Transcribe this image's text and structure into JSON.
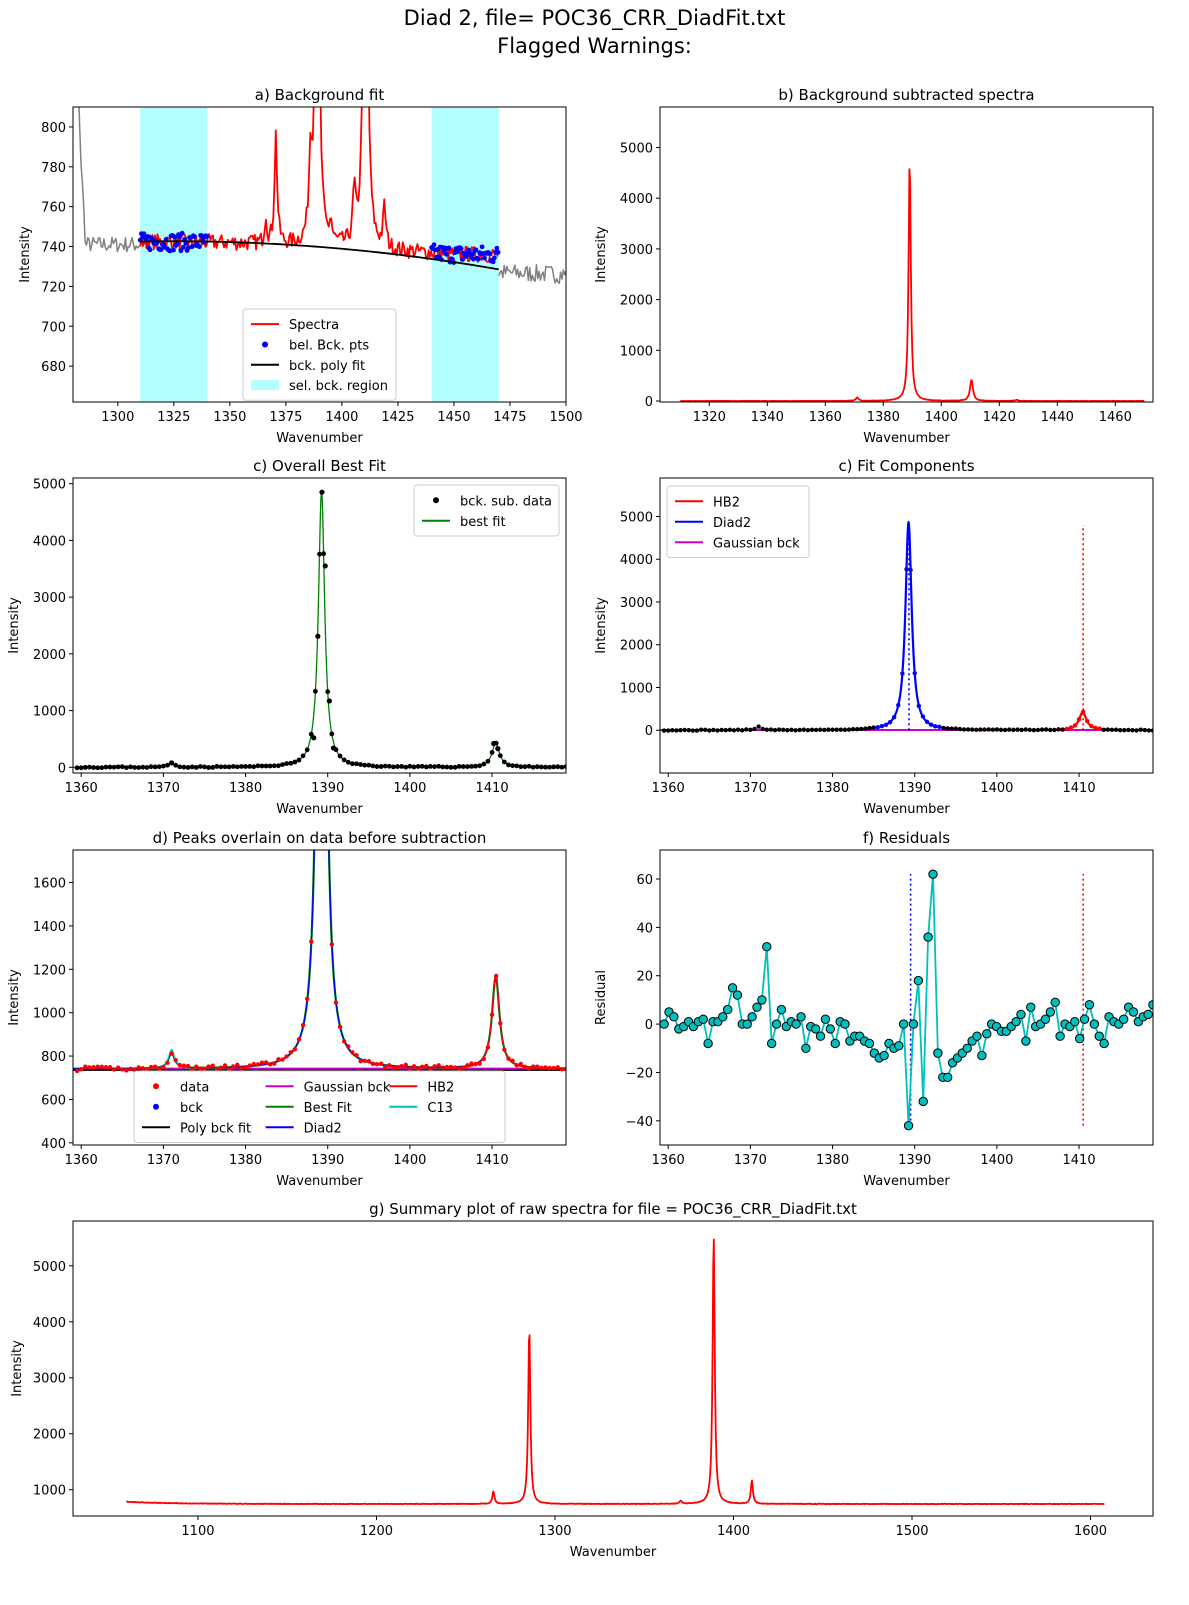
{
  "figure": {
    "title_line1": "Diad 2, file= POC36_CRR_DiadFit.txt",
    "title_line2": "Flagged Warnings:"
  },
  "colors": {
    "spectra": "#ff0000",
    "bck_points": "#0000ff",
    "poly_fit": "#000000",
    "bck_region": "#b3ffff",
    "raw_outside": "#808080",
    "best_fit": "#008000",
    "hb2": "#ff0000",
    "diad2": "#0000ff",
    "gaussian_bck": "#cc00cc",
    "c13": "#00bfbf",
    "residual": "#00bfbf"
  },
  "chart_data": [
    {
      "id": "a",
      "type": "line",
      "title": "a) Background fit",
      "xlabel": "Wavenumber",
      "ylabel": "Intensity",
      "xlim": [
        1280,
        1500
      ],
      "ylim": [
        662,
        810
      ],
      "xticks": [
        1300,
        1325,
        1350,
        1375,
        1400,
        1425,
        1450,
        1475,
        1500
      ],
      "yticks": [
        680,
        700,
        720,
        740,
        760,
        780,
        800
      ],
      "bck_regions": [
        [
          1310,
          1340
        ],
        [
          1440,
          1470
        ]
      ],
      "poly_fit": [
        [
          1310,
          742
        ],
        [
          1340,
          743
        ],
        [
          1370,
          742
        ],
        [
          1400,
          740
        ],
        [
          1430,
          735
        ],
        [
          1470,
          728
        ]
      ],
      "legend": {
        "position": "lower center",
        "entries": [
          {
            "label": "Spectra",
            "kind": "line",
            "color": "#ff0000"
          },
          {
            "label": "bel. Bck. pts",
            "kind": "dot",
            "color": "#0000ff"
          },
          {
            "label": "bck. poly fit",
            "kind": "line",
            "color": "#000000"
          },
          {
            "label": "sel. bck. region",
            "kind": "patch",
            "color": "#b3ffff"
          }
        ]
      }
    },
    {
      "id": "b",
      "type": "line",
      "title": "b) Background subtracted spectra",
      "xlabel": "Wavenumber",
      "ylabel": "Intensity",
      "xlim": [
        1303,
        1473
      ],
      "ylim": [
        -20,
        5800
      ],
      "xticks": [
        1320,
        1340,
        1360,
        1380,
        1400,
        1420,
        1440,
        1460
      ],
      "yticks": [
        0,
        1000,
        2000,
        3000,
        4000,
        5000
      ],
      "peaks": [
        {
          "center": 1389.1,
          "height": 4800,
          "width": 0.45
        },
        {
          "center": 1410.4,
          "height": 420,
          "width": 0.6
        },
        {
          "center": 1371.0,
          "height": 70,
          "width": 0.5
        }
      ]
    },
    {
      "id": "c1",
      "type": "scatter",
      "title": "c) Overall Best Fit",
      "xlabel": "Wavenumber",
      "ylabel": "Intensity",
      "xlim": [
        1359,
        1419
      ],
      "ylim": [
        -100,
        5100
      ],
      "xticks": [
        1360,
        1370,
        1380,
        1390,
        1400,
        1410
      ],
      "yticks": [
        0,
        1000,
        2000,
        3000,
        4000,
        5000
      ],
      "points": [
        [
          1388.3,
          520
        ],
        [
          1388.8,
          2310
        ],
        [
          1389.3,
          4850
        ],
        [
          1389.7,
          3550
        ],
        [
          1390.2,
          1170
        ],
        [
          1390.7,
          340
        ],
        [
          1371.0,
          80
        ],
        [
          1410.2,
          420
        ],
        [
          1410.7,
          330
        ]
      ],
      "legend": {
        "position": "upper right",
        "entries": [
          {
            "label": "bck. sub. data",
            "kind": "dot",
            "color": "#000000"
          },
          {
            "label": "best fit",
            "kind": "line",
            "color": "#008000"
          }
        ]
      }
    },
    {
      "id": "c2",
      "type": "line",
      "title": "c) Fit Components",
      "xlabel": "Wavenumber",
      "ylabel": "Intensity",
      "xlim": [
        1359,
        1419
      ],
      "ylim": [
        -1000,
        5900
      ],
      "xticks": [
        1360,
        1370,
        1380,
        1390,
        1400,
        1410
      ],
      "yticks": [
        0,
        1000,
        2000,
        3000,
        4000,
        5000
      ],
      "center_markers": [
        {
          "x": 1389.3,
          "color": "#0000ff",
          "ymax": 4900
        },
        {
          "x": 1410.5,
          "color": "#ff0000",
          "ymax": 4800
        }
      ],
      "legend": {
        "position": "upper left",
        "entries": [
          {
            "label": "HB2",
            "kind": "line",
            "color": "#ff0000"
          },
          {
            "label": "Diad2",
            "kind": "line",
            "color": "#0000ff"
          },
          {
            "label": "Gaussian bck",
            "kind": "line",
            "color": "#cc00cc"
          }
        ]
      }
    },
    {
      "id": "d",
      "type": "line",
      "title": "d) Peaks overlain on data before subtraction",
      "xlabel": "Wavenumber",
      "ylabel": "Intensity",
      "xlim": [
        1359,
        1419
      ],
      "ylim": [
        390,
        1750
      ],
      "xticks": [
        1360,
        1370,
        1380,
        1390,
        1400,
        1410
      ],
      "yticks": [
        400,
        600,
        800,
        1000,
        1200,
        1400,
        1600
      ],
      "baseline": 740,
      "legend": {
        "position": "lower center",
        "columns": 3,
        "entries": [
          {
            "label": "data",
            "kind": "dot",
            "color": "#ff0000"
          },
          {
            "label": "bck",
            "kind": "dot",
            "color": "#0000ff"
          },
          {
            "label": "Poly bck fit",
            "kind": "line",
            "color": "#000000"
          },
          {
            "label": "Gaussian bck",
            "kind": "line",
            "color": "#cc00cc"
          },
          {
            "label": "Best Fit",
            "kind": "line",
            "color": "#008000"
          },
          {
            "label": "Diad2",
            "kind": "line",
            "color": "#0000ff"
          },
          {
            "label": "HB2",
            "kind": "line",
            "color": "#ff0000"
          },
          {
            "label": "C13",
            "kind": "line",
            "color": "#00bfbf"
          }
        ]
      }
    },
    {
      "id": "f",
      "type": "line",
      "title": "f) Residuals",
      "xlabel": "Wavenumber",
      "ylabel": "Residual",
      "xlim": [
        1359,
        1419
      ],
      "ylim": [
        -50,
        72
      ],
      "xticks": [
        1360,
        1370,
        1380,
        1390,
        1400,
        1410
      ],
      "yticks": [
        -40,
        -20,
        0,
        20,
        40,
        60
      ],
      "center_markers": [
        {
          "x": 1389.5,
          "color": "#0000ff",
          "ymin": -42,
          "ymax": 62
        },
        {
          "x": 1410.5,
          "color": "#ff0000",
          "ymin": -42,
          "ymax": 62
        }
      ],
      "points": [
        [
          1359.5,
          0
        ],
        [
          1360,
          5
        ],
        [
          1360.5,
          3
        ],
        [
          1361,
          -2
        ],
        [
          1361.5,
          -1
        ],
        [
          1362,
          1
        ],
        [
          1362.5,
          -1
        ],
        [
          1363,
          1
        ],
        [
          1363.5,
          2
        ],
        [
          1364,
          -8
        ],
        [
          1364.5,
          1
        ],
        [
          1365,
          1
        ],
        [
          1365.5,
          3
        ],
        [
          1366,
          6
        ],
        [
          1366.5,
          15
        ],
        [
          1367,
          12
        ],
        [
          1367.5,
          0
        ],
        [
          1368,
          0
        ],
        [
          1368.5,
          3
        ],
        [
          1369,
          7
        ],
        [
          1369.5,
          10
        ],
        [
          1370,
          32
        ],
        [
          1370.5,
          -8
        ],
        [
          1371,
          0
        ],
        [
          1371.5,
          6
        ],
        [
          1372,
          -1
        ],
        [
          1372.5,
          1
        ],
        [
          1373,
          0
        ],
        [
          1373.5,
          3
        ],
        [
          1374,
          -10
        ],
        [
          1374.5,
          -1
        ],
        [
          1375,
          -2
        ],
        [
          1375.5,
          -5
        ],
        [
          1376,
          2
        ],
        [
          1376.5,
          -2
        ],
        [
          1377,
          -8
        ],
        [
          1377.5,
          1
        ],
        [
          1378,
          0
        ],
        [
          1378.5,
          -7
        ],
        [
          1379,
          -5
        ],
        [
          1379.5,
          -5
        ],
        [
          1380,
          -7
        ],
        [
          1380.5,
          -8
        ],
        [
          1381,
          -12
        ],
        [
          1381.5,
          -14
        ],
        [
          1382,
          -13
        ],
        [
          1382.5,
          -8
        ],
        [
          1383,
          -10
        ],
        [
          1383.5,
          -9
        ],
        [
          1384,
          0
        ],
        [
          1384.5,
          -42
        ],
        [
          1385,
          0
        ],
        [
          1385.5,
          18
        ],
        [
          1386,
          -32
        ],
        [
          1386.5,
          36
        ],
        [
          1387,
          62
        ],
        [
          1387.5,
          -12
        ],
        [
          1388,
          -22
        ],
        [
          1388.5,
          -22
        ],
        [
          1389,
          -16
        ],
        [
          1389.5,
          -14
        ],
        [
          1390,
          -12
        ],
        [
          1390.5,
          -10
        ],
        [
          1391,
          -7
        ],
        [
          1391.5,
          -5
        ],
        [
          1392,
          -13
        ],
        [
          1392.5,
          -4
        ],
        [
          1393,
          0
        ],
        [
          1393.5,
          -1
        ],
        [
          1394,
          -3
        ],
        [
          1394.5,
          -3
        ],
        [
          1395,
          -1
        ],
        [
          1395.5,
          1
        ],
        [
          1396,
          4
        ],
        [
          1396.5,
          -7
        ],
        [
          1397,
          7
        ],
        [
          1397.5,
          -1
        ],
        [
          1398,
          0
        ],
        [
          1398.5,
          2
        ],
        [
          1399,
          5
        ],
        [
          1399.5,
          9
        ],
        [
          1400,
          -5
        ],
        [
          1400.5,
          0
        ],
        [
          1401,
          -1
        ],
        [
          1401.5,
          1
        ],
        [
          1402,
          -6
        ],
        [
          1402.5,
          2
        ],
        [
          1403,
          8
        ],
        [
          1403.5,
          0
        ],
        [
          1404,
          -5
        ],
        [
          1404.5,
          -8
        ],
        [
          1405,
          3
        ],
        [
          1405.5,
          1
        ],
        [
          1406,
          0
        ],
        [
          1406.5,
          2
        ],
        [
          1407,
          7
        ],
        [
          1407.5,
          5
        ],
        [
          1408,
          1
        ],
        [
          1408.5,
          3
        ],
        [
          1409,
          4
        ],
        [
          1409.5,
          8
        ]
      ],
      "legend": null
    },
    {
      "id": "g",
      "type": "line",
      "title": "g) Summary plot of raw spectra for file = POC36_CRR_DiadFit.txt",
      "xlabel": "Wavenumber",
      "ylabel": "Intensity",
      "xlim": [
        1030,
        1635
      ],
      "ylim": [
        530,
        5800
      ],
      "xticks": [
        1100,
        1200,
        1300,
        1400,
        1500,
        1600
      ],
      "yticks": [
        1000,
        2000,
        3000,
        4000,
        5000
      ],
      "x_range": [
        1060,
        1608
      ],
      "baseline": 745,
      "peaks": [
        {
          "center": 1285.6,
          "height": 3900
        },
        {
          "center": 1388.9,
          "height": 5560
        },
        {
          "center": 1410.3,
          "height": 1160
        },
        {
          "center": 1265.5,
          "height": 970
        },
        {
          "center": 1370.5,
          "height": 800
        }
      ]
    }
  ]
}
